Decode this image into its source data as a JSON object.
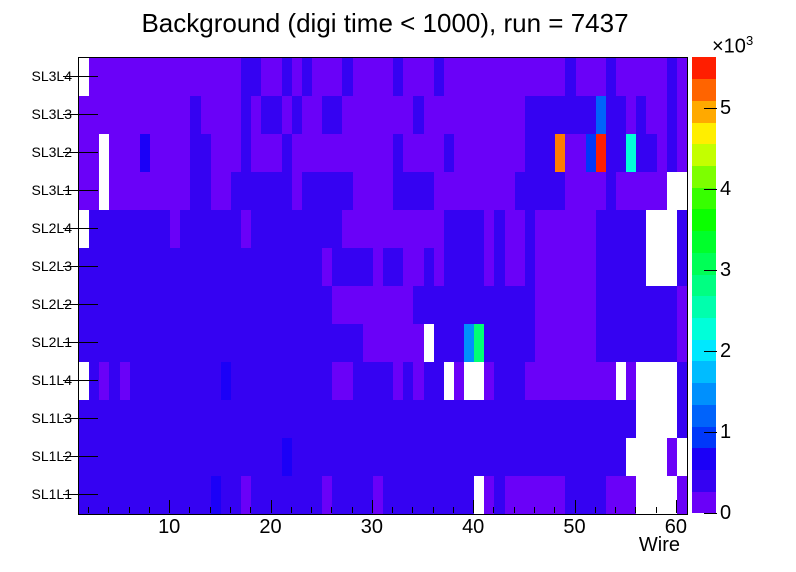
{
  "title": "Background (digi time < 1000), run = 7437",
  "chart_data": {
    "type": "heatmap",
    "title": "Background (digi time < 1000), run = 7437",
    "xlabel": "Wire",
    "x_range": [
      1,
      61
    ],
    "x_major_ticks": [
      10,
      20,
      30,
      40,
      50,
      60
    ],
    "x_minor_tick_step": 2,
    "row_labels_top_to_bottom": [
      "SL3L4",
      "SL3L3",
      "SL3L2",
      "SL3L1",
      "SL2L4",
      "SL2L3",
      "SL2L2",
      "SL2L1",
      "SL1L4",
      "SL1L3",
      "SL1L2",
      "SL1L1"
    ],
    "rows": [
      {
        "label": "SL3L4",
        "cells": "wvvvvvvvvvvvvvvvbbvvbvbvvvbvvvvbvvvbvvvvvvvvvvvvbvvvbvvvvvbv"
      },
      {
        "label": "SL3L3",
        "cells": "vvvvvvvvvvvbvvvvbvbbvbvvbbvvvvvvvbvvvvvvvvvvbbbbbbbsbbvbvvbv"
      },
      {
        "label": "SL3L2",
        "cells": "vvwvvvBvvvvbbvvvbvvvbvvvvvvvvvvbvvvvbvvvvvvvbbbovvdrbbcbbvbv"
      },
      {
        "label": "SL3L1",
        "cells": "vvwvvvvvvvvbbvvbbbbbbvbbbbbvvvvbbbbvvvvvvvvbbbbbvvvvbvvvvvww"
      },
      {
        "label": "SL2L4",
        "cells": "wbbbbbbbbvbbbbbbvbbbbbbbbbvvvvvvvvvvbbbbvbvvbvvvvvvbbbbbwwwb"
      },
      {
        "label": "SL2L3",
        "cells": "bbbbbbbbbbbbbbbbbbbbbbbbvbbbbvbbvvbvbbbbvbvvbvvvvvvbbbbbwwwb"
      },
      {
        "label": "SL2L2",
        "cells": "bbbbbbbbbbbbbbbbbbbbbbbbbvvvvvvvvbbbbbbbbbbbbvvvvvvbbbbbbbbv"
      },
      {
        "label": "SL2L1",
        "cells": "bbbbbbbbbbbbbbbbbbbbbbbbbbbbvvvvvvwbbbSgbbbbbvvvvvvbbbbbbbbv"
      },
      {
        "label": "SL1L4",
        "cells": "wbvbvbbbbbbbbbBbbbbbbbbbbvvbbbbvbvbbwvwwvbbbvvvvvvvvvwvwwwwb"
      },
      {
        "label": "SL1L3",
        "cells": "bbbbbbbbbbbbbbbbbbbbbbbbbbbbbbbbbbbbbbbbbbbbbbbbbbbbbbbwwwwb"
      },
      {
        "label": "SL1L2",
        "cells": "bbbbbbbbbbbbbbbbbbbbBbbbbbbbbbbbbbbbbbbbbbbbbbbbbbbbbbwwwwv"
      },
      {
        "label": "SL1L1",
        "cells": "bbbbbbbbbbbbbBbbvbbbbbbbvbbbbvbbbbbbbbbwvbvvvvvvbbbbvvvwwwwv"
      }
    ],
    "legend": {
      "w": {
        "color": "#ffffff",
        "value_approx": 0,
        "meaning": "empty bin"
      },
      "v": {
        "color": "#6a01f8",
        "value_approx": 150
      },
      "b": {
        "color": "#3502f2",
        "value_approx": 420
      },
      "B": {
        "color": "#1b00f7",
        "value_approx": 700
      },
      "d": {
        "color": "#0038fa",
        "value_approx": 1000
      },
      "s": {
        "color": "#0063fb",
        "value_approx": 1300
      },
      "S": {
        "color": "#0090fd",
        "value_approx": 1600
      },
      "c": {
        "color": "#00ffd9",
        "value_approx": 2400
      },
      "g": {
        "color": "#00ff75",
        "value_approx": 2900
      },
      "o": {
        "color": "#ff7d00",
        "value_approx": 4900
      },
      "r": {
        "color": "#ff1e00",
        "value_approx": 5600
      }
    },
    "notable_cells": [
      {
        "row": "SL3L2",
        "wire": 48,
        "value_approx": 4900,
        "color_name": "orange"
      },
      {
        "row": "SL3L2",
        "wire": 51,
        "value_approx": 1000,
        "color_name": "bright-blue"
      },
      {
        "row": "SL3L2",
        "wire": 52,
        "value_approx": 5600,
        "color_name": "red-max"
      },
      {
        "row": "SL3L2",
        "wire": 55,
        "value_approx": 2400,
        "color_name": "aqua"
      },
      {
        "row": "SL3L3",
        "wire": 52,
        "value_approx": 1300,
        "color_name": "sky-blue"
      },
      {
        "row": "SL2L1",
        "wire": 39,
        "value_approx": 1600,
        "color_name": "light-blue"
      },
      {
        "row": "SL2L1",
        "wire": 40,
        "value_approx": 2900,
        "color_name": "spring-green"
      }
    ],
    "colorbar": {
      "colors_bottom_to_top": [
        "#6a01f8",
        "#3502f2",
        "#1b00f7",
        "#0038fa",
        "#0063fb",
        "#0090fd",
        "#00bcff",
        "#00e8ff",
        "#00ffd9",
        "#00ffad",
        "#00ff82",
        "#00ff56",
        "#00ff2b",
        "#0bff00",
        "#37ff00",
        "#7dff00",
        "#c3ff00",
        "#ffee00",
        "#ffa900",
        "#ff6400",
        "#ff1e00"
      ],
      "ticks": [
        0,
        1,
        2,
        3,
        4,
        5
      ],
      "tick_unit": 1000,
      "max_value": 5630,
      "scale_multiplier": "×10",
      "scale_exponent": "3"
    },
    "grid": false,
    "legend_position": "right-colorbar"
  }
}
